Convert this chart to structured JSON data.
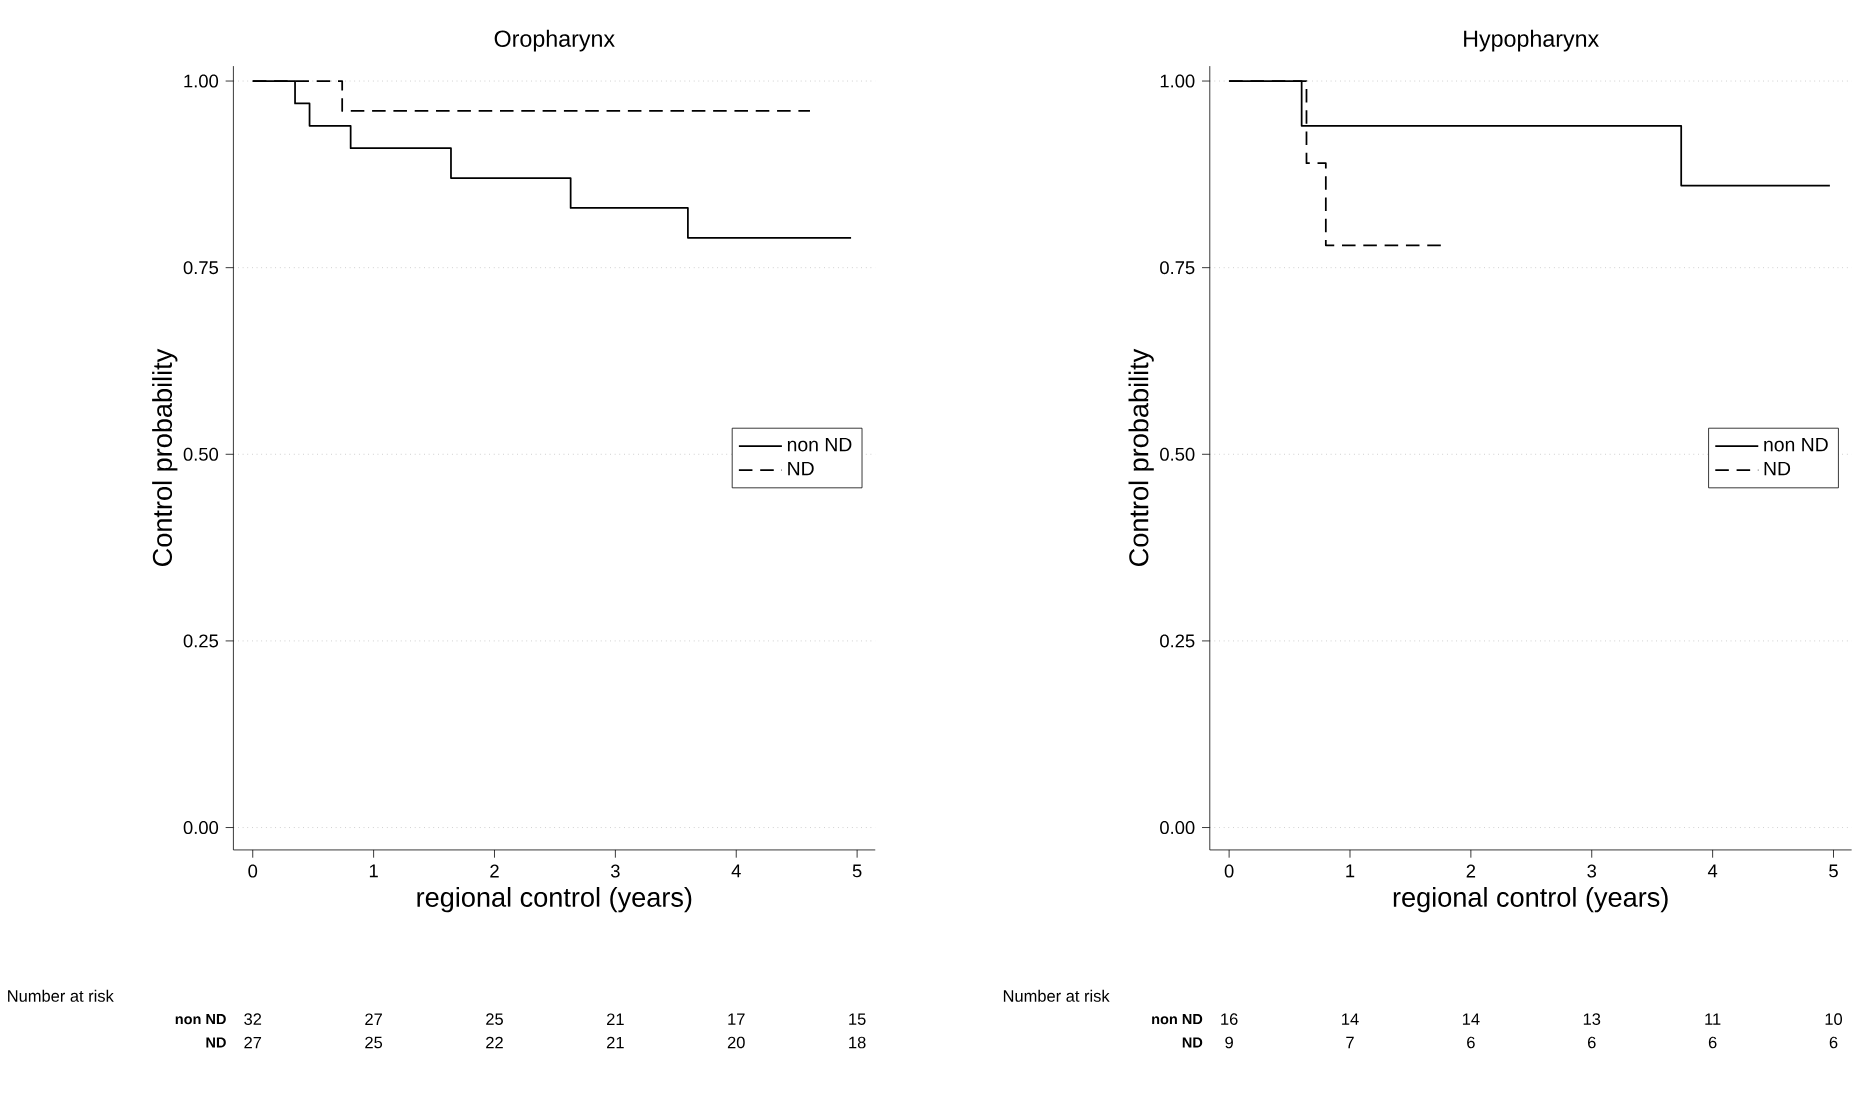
{
  "chart_data": [
    {
      "type": "step",
      "title": "Oropharynx",
      "xlabel": "regional control (years)",
      "ylabel": "Control probability",
      "series": [
        {
          "name": "non ND",
          "color": "#000000",
          "line_style": "solid",
          "x": [
            0,
            0.35,
            0.47,
            0.81,
            1.64,
            2.63,
            3.6,
            4.95
          ],
          "values": [
            1,
            0.97,
            0.94,
            0.91,
            0.87,
            0.83,
            0.79,
            0.79
          ]
        },
        {
          "name": "ND",
          "color": "#000000",
          "line_style": "dashed",
          "x": [
            0,
            0.74,
            4.61
          ],
          "values": [
            1,
            0.96,
            0.96
          ]
        }
      ],
      "xlim": [
        -0.16,
        5.15
      ],
      "xticks": [
        0,
        1,
        2,
        3,
        4,
        5
      ],
      "ylim": [
        -0.03,
        1.02
      ],
      "yticks": [
        {
          "value": 0,
          "label": "0.00"
        },
        {
          "value": 0.25,
          "label": "0.25"
        },
        {
          "value": 0.5,
          "label": "0.50"
        },
        {
          "value": 0.75,
          "label": "0.75"
        },
        {
          "value": 1,
          "label": "1.00"
        }
      ],
      "grid": "y",
      "legend": "right",
      "annotations": [
        "Number at risk",
        "non ND",
        "ND",
        "32",
        "27",
        "25",
        "21",
        "17",
        "15",
        "27",
        "25",
        "22",
        "21",
        "20",
        "18"
      ]
    },
    {
      "type": "step",
      "title": "Hypopharynx",
      "xlabel": "regional control (years)",
      "ylabel": "Control probability",
      "series": [
        {
          "name": "non ND",
          "color": "#000000",
          "line_style": "solid",
          "x": [
            0,
            0.6,
            3.74,
            4.97
          ],
          "values": [
            1,
            0.94,
            0.86,
            0.86
          ]
        },
        {
          "name": "ND",
          "color": "#000000",
          "line_style": "dashed",
          "x": [
            0,
            0.64,
            0.8,
            1.79
          ],
          "values": [
            1,
            0.89,
            0.78,
            0.78
          ]
        }
      ],
      "xlim": [
        -0.16,
        5.15
      ],
      "xticks": [
        0,
        1,
        2,
        3,
        4,
        5
      ],
      "ylim": [
        -0.03,
        1.02
      ],
      "yticks": [
        {
          "value": 0,
          "label": "0.00"
        },
        {
          "value": 0.25,
          "label": "0.25"
        },
        {
          "value": 0.5,
          "label": "0.50"
        },
        {
          "value": 0.75,
          "label": "0.75"
        },
        {
          "value": 1,
          "label": "1.00"
        }
      ],
      "grid": "y",
      "legend": "right",
      "annotations": [
        "Number at risk",
        "non ND",
        "ND",
        "16",
        "14",
        "14",
        "13",
        "11",
        "10",
        "9",
        "7",
        "6",
        "6",
        "6",
        "6"
      ]
    }
  ]
}
